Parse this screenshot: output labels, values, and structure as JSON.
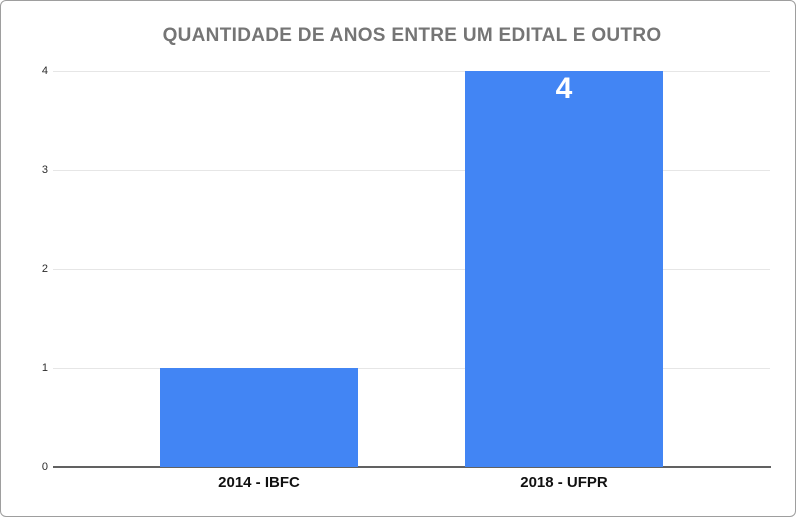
{
  "chart_data": {
    "type": "bar",
    "title": "QUANTIDADE DE ANOS ENTRE UM EDITAL E OUTRO",
    "categories": [
      "2014 - IBFC",
      "2018 - UFPR"
    ],
    "values": [
      1,
      4
    ],
    "bar_labels": [
      "",
      "4"
    ],
    "xlabel": "",
    "ylabel": "",
    "ylim": [
      0,
      4
    ],
    "yticks": [
      0,
      1,
      2,
      3,
      4
    ],
    "grid": true,
    "legend": "none"
  },
  "colors": {
    "bar": "#4285f4",
    "bar-label": "#ffffff",
    "title": "#757575",
    "axis-line": "#616161",
    "gridline": "#e6e6e6",
    "tick-label": "#2b2b2b",
    "category-label": "#111111",
    "frame-border": "#9e9e9e",
    "background": "#ffffff"
  }
}
